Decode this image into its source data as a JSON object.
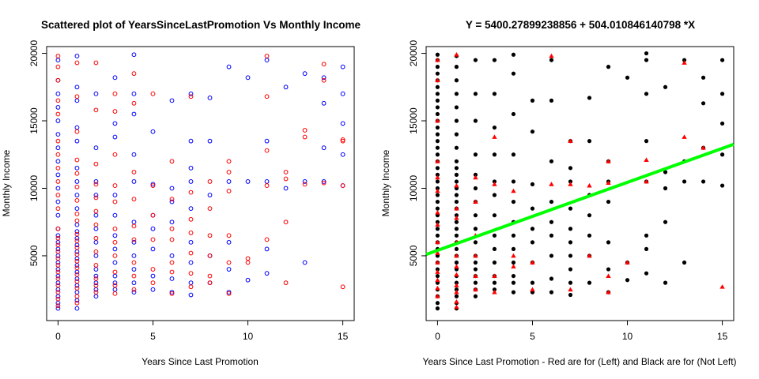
{
  "chart_data": [
    {
      "type": "scatter",
      "title": "Scattered plot of YearsSinceLastPromotion Vs Monthly Income",
      "xlabel": "Years Since Last Promotion",
      "ylabel": "Monthly Income",
      "xlim": [
        -0.6,
        15.6
      ],
      "ylim": [
        200,
        20500
      ],
      "xticks": [
        0,
        5,
        10,
        15
      ],
      "yticks": [
        5000,
        10000,
        15000,
        20000
      ],
      "grid": false,
      "marker": "open-circle",
      "series": [
        {
          "color": "#0000ff",
          "x": [
            0,
            0,
            0,
            0,
            0,
            0,
            0,
            0,
            0,
            0,
            0,
            0,
            0,
            0,
            0,
            0,
            0,
            0,
            0,
            0,
            0,
            0,
            0,
            0,
            0,
            1,
            1,
            1,
            1,
            1,
            1,
            1,
            1,
            1,
            1,
            1,
            1,
            1,
            1,
            1,
            1,
            1,
            1,
            1,
            1,
            1,
            1,
            2,
            2,
            2,
            2,
            2,
            2,
            2,
            2,
            2,
            2,
            2,
            2,
            2,
            3,
            3,
            3,
            3,
            3,
            3,
            3,
            3,
            3,
            3,
            3,
            4,
            4,
            4,
            4,
            4,
            4,
            4,
            4,
            4,
            4,
            4,
            5,
            5,
            5,
            5,
            5,
            5,
            5,
            6,
            6,
            6,
            6,
            6,
            6,
            6,
            7,
            7,
            7,
            7,
            7,
            7,
            7,
            7,
            7,
            8,
            8,
            8,
            8,
            8,
            9,
            9,
            9,
            9,
            9,
            10,
            10,
            10,
            11,
            11,
            11,
            11,
            11,
            12,
            12,
            13,
            13,
            13,
            14,
            14,
            14,
            14,
            15,
            15,
            15,
            15,
            15
          ],
          "y": [
            1100,
            1500,
            2000,
            2500,
            3000,
            3500,
            4000,
            4500,
            5000,
            5500,
            6000,
            6500,
            7000,
            8000,
            9000,
            10000,
            11000,
            12000,
            13000,
            14000,
            15000,
            16000,
            17000,
            18000,
            19500,
            1100,
            1700,
            2300,
            2800,
            3300,
            3800,
            4300,
            4800,
            5300,
            5800,
            6300,
            6800,
            7300,
            8500,
            9500,
            10500,
            11500,
            13500,
            14500,
            16500,
            17500,
            19800,
            2000,
            2500,
            3000,
            3500,
            4000,
            5000,
            6000,
            7000,
            8000,
            9500,
            10500,
            13000,
            17000,
            2500,
            3000,
            3500,
            4500,
            5500,
            6500,
            8000,
            9500,
            13800,
            14800,
            18200,
            2300,
            3000,
            4000,
            5000,
            6000,
            7500,
            10500,
            12500,
            15500,
            17000,
            19900,
            2500,
            3500,
            5500,
            7000,
            8000,
            10300,
            14200,
            2300,
            3300,
            5000,
            7500,
            9000,
            10000,
            16500,
            2100,
            3000,
            4500,
            6000,
            8500,
            10500,
            11500,
            13500,
            17000,
            3000,
            5000,
            9500,
            13500,
            16700,
            2300,
            4000,
            6000,
            10500,
            19000,
            3200,
            10500,
            18200,
            3700,
            5500,
            10500,
            13500,
            19500,
            10000,
            17500,
            4500,
            10500,
            18500,
            10500,
            13000,
            16300,
            18200,
            10200,
            12500,
            14800,
            17000,
            19000
          ]
        },
        {
          "color": "#ff0000",
          "x": [
            0,
            0,
            0,
            0,
            0,
            0,
            0,
            0,
            0,
            0,
            0,
            0,
            0,
            0,
            0,
            0,
            0,
            0,
            0,
            0,
            0,
            0,
            0,
            1,
            1,
            1,
            1,
            1,
            1,
            1,
            1,
            1,
            1,
            1,
            1,
            1,
            1,
            1,
            1,
            1,
            1,
            1,
            1,
            2,
            2,
            2,
            2,
            2,
            2,
            2,
            2,
            2,
            2,
            2,
            2,
            2,
            3,
            3,
            3,
            3,
            3,
            3,
            3,
            3,
            3,
            3,
            3,
            4,
            4,
            4,
            4,
            4,
            4,
            4,
            4,
            4,
            5,
            5,
            5,
            5,
            5,
            5,
            6,
            6,
            6,
            6,
            6,
            6,
            6,
            7,
            7,
            7,
            7,
            7,
            7,
            7,
            8,
            8,
            8,
            8,
            8,
            8,
            9,
            9,
            9,
            9,
            9,
            9,
            10,
            10,
            11,
            11,
            11,
            11,
            11,
            12,
            12,
            12,
            12,
            13,
            13,
            13,
            14,
            14,
            14,
            15,
            15,
            15,
            15
          ],
          "y": [
            1300,
            1800,
            2300,
            2800,
            3300,
            3800,
            4300,
            4800,
            5300,
            5800,
            6300,
            7000,
            8500,
            9500,
            10500,
            11500,
            12500,
            13500,
            15500,
            16500,
            18000,
            19000,
            19800,
            1500,
            2000,
            2600,
            3100,
            3600,
            4100,
            4600,
            5100,
            5600,
            6100,
            6600,
            7600,
            8100,
            9100,
            10100,
            11100,
            12100,
            14200,
            16800,
            19300,
            2300,
            2800,
            3300,
            4300,
            5300,
            6300,
            7300,
            8300,
            9300,
            10300,
            11800,
            15800,
            19300,
            2200,
            2800,
            3800,
            5000,
            6000,
            7000,
            9000,
            10200,
            12500,
            15700,
            17000,
            2500,
            3500,
            4500,
            6200,
            7200,
            9200,
            11200,
            16300,
            18500,
            3000,
            4000,
            6200,
            8000,
            10200,
            17000,
            2200,
            3800,
            4500,
            6200,
            7000,
            9200,
            12000,
            2700,
            3700,
            5200,
            6700,
            7700,
            9700,
            16800,
            3000,
            3500,
            5000,
            6500,
            8500,
            10500,
            2200,
            4500,
            6500,
            9800,
            11200,
            12000,
            4500,
            4800,
            6200,
            10200,
            12800,
            16800,
            19800,
            3000,
            7500,
            10700,
            11200,
            10300,
            13800,
            14300,
            10400,
            18000,
            19200,
            2700,
            10200,
            13500,
            13600
          ]
        }
      ]
    },
    {
      "type": "scatter",
      "title": "Y =  5400.27899238856 + 504.010846140798 *X",
      "xlabel": "Years Since Last Promotion - Red are for (Left) and Black are for (Not Left)",
      "ylabel": "Monthly Income",
      "xlim": [
        -0.6,
        15.6
      ],
      "ylim": [
        200,
        20500
      ],
      "xticks": [
        0,
        5,
        10,
        15
      ],
      "yticks": [
        5000,
        10000,
        15000,
        20000
      ],
      "grid": false,
      "regression_line": {
        "intercept": 5400.27899238856,
        "slope": 504.010846140798,
        "color": "#00ff00"
      },
      "series": [
        {
          "marker": "filled-circle",
          "color": "#000000",
          "x": [
            0,
            0,
            0,
            0,
            0,
            0,
            0,
            0,
            0,
            0,
            0,
            0,
            0,
            0,
            0,
            0,
            0,
            0,
            0,
            0,
            0,
            0,
            0,
            0,
            0,
            0,
            0,
            0,
            0,
            0,
            0,
            0,
            0,
            0,
            0,
            0,
            0,
            0,
            0,
            1,
            1,
            1,
            1,
            1,
            1,
            1,
            1,
            1,
            1,
            1,
            1,
            1,
            1,
            1,
            1,
            1,
            1,
            1,
            1,
            1,
            1,
            1,
            1,
            1,
            1,
            1,
            1,
            1,
            1,
            1,
            2,
            2,
            2,
            2,
            2,
            2,
            2,
            2,
            2,
            2,
            2,
            2,
            2,
            2,
            2,
            2,
            2,
            3,
            3,
            3,
            3,
            3,
            3,
            3,
            3,
            3,
            3,
            3,
            3,
            3,
            4,
            4,
            4,
            4,
            4,
            4,
            4,
            4,
            4,
            4,
            4,
            4,
            4,
            5,
            5,
            5,
            5,
            5,
            5,
            5,
            5,
            5,
            6,
            6,
            6,
            6,
            6,
            6,
            6,
            6,
            6,
            7,
            7,
            7,
            7,
            7,
            7,
            7,
            7,
            7,
            7,
            8,
            8,
            8,
            8,
            8,
            8,
            8,
            9,
            9,
            9,
            9,
            9,
            9,
            9,
            10,
            10,
            10,
            11,
            11,
            11,
            11,
            11,
            11,
            11,
            11,
            12,
            12,
            12,
            12,
            12,
            13,
            13,
            13,
            13,
            14,
            14,
            14,
            14,
            15,
            15,
            15,
            15,
            15
          ],
          "y": [
            1100,
            1500,
            2000,
            2500,
            3000,
            3500,
            4000,
            4500,
            5000,
            5500,
            6000,
            6500,
            7000,
            7500,
            8000,
            8500,
            9000,
            9500,
            10000,
            10500,
            11000,
            11500,
            12000,
            12500,
            13000,
            13500,
            14000,
            14500,
            15000,
            15500,
            16000,
            16500,
            17000,
            17500,
            18000,
            18500,
            19000,
            19500,
            19900,
            1100,
            1500,
            2000,
            2500,
            3000,
            3500,
            4000,
            4500,
            5000,
            5500,
            6000,
            6500,
            7000,
            7500,
            8000,
            8500,
            9000,
            9500,
            10000,
            10500,
            11000,
            11500,
            12000,
            13000,
            14000,
            15000,
            16000,
            17000,
            18000,
            19000,
            19800,
            2000,
            2500,
            3000,
            3500,
            4000,
            4500,
            5000,
            6000,
            7000,
            8000,
            9000,
            10000,
            11000,
            12500,
            15000,
            17000,
            19500,
            2500,
            3000,
            3500,
            4500,
            5500,
            6500,
            8000,
            9500,
            10500,
            12500,
            14500,
            17000,
            19500,
            2300,
            3000,
            3500,
            4500,
            5500,
            6500,
            7500,
            9000,
            10500,
            12500,
            15500,
            18500,
            19900,
            2300,
            3000,
            4500,
            6000,
            7000,
            8500,
            10300,
            14200,
            16500,
            2300,
            3300,
            5000,
            6500,
            7500,
            9000,
            12000,
            16500,
            19500,
            2100,
            3000,
            4000,
            5000,
            6000,
            7000,
            8500,
            10500,
            11500,
            13500,
            3000,
            5000,
            6500,
            8000,
            9500,
            13500,
            16700,
            2300,
            4000,
            6000,
            9000,
            10500,
            12000,
            19000,
            3200,
            4500,
            18200,
            3700,
            5500,
            6500,
            10500,
            13500,
            17000,
            19500,
            20000,
            3000,
            7500,
            10000,
            11200,
            17500,
            4500,
            10500,
            12000,
            19500,
            10500,
            13000,
            16300,
            18200,
            10200,
            12500,
            14800,
            17000,
            19500
          ]
        },
        {
          "marker": "filled-triangle",
          "color": "#ff0000",
          "x": [
            0,
            0,
            0,
            0,
            0,
            0,
            0,
            0,
            0,
            0,
            0,
            0,
            0,
            0,
            0,
            1,
            1,
            1,
            1,
            1,
            1,
            1,
            1,
            1,
            1,
            1,
            1,
            2,
            2,
            2,
            2,
            2,
            2,
            3,
            3,
            3,
            3,
            4,
            4,
            4,
            5,
            5,
            6,
            6,
            7,
            7,
            7,
            8,
            8,
            9,
            9,
            9,
            9,
            10,
            11,
            11,
            13,
            13,
            14,
            15
          ],
          "y": [
            2000,
            2600,
            3200,
            3800,
            4500,
            5200,
            6000,
            7300,
            8200,
            9800,
            10800,
            12000,
            15000,
            18000,
            19500,
            1200,
            1600,
            2300,
            2800,
            3600,
            4200,
            5000,
            6000,
            7800,
            8500,
            10200,
            19900,
            2500,
            3500,
            5000,
            6500,
            9000,
            10800,
            2300,
            3500,
            10300,
            13800,
            4200,
            5000,
            9800,
            2500,
            4500,
            10300,
            19800,
            2500,
            10300,
            13500,
            5000,
            10200,
            2300,
            3500,
            10400,
            12000,
            4500,
            10500,
            12100,
            13800,
            19300,
            13000,
            2700
          ]
        }
      ]
    }
  ]
}
